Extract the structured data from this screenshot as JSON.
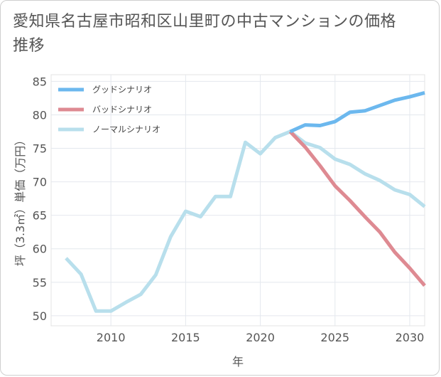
{
  "title": "愛知県名古屋市昭和区山里町の中古マンションの価格推移",
  "chart_data": {
    "type": "line",
    "xlabel": "年",
    "ylabel": "坪（3.3㎡）単価（万円）",
    "xlim": [
      2006,
      2031
    ],
    "ylim": [
      48.5,
      86
    ],
    "x_ticks": [
      2010,
      2015,
      2020,
      2025,
      2030
    ],
    "y_ticks": [
      50,
      55,
      60,
      65,
      70,
      75,
      80,
      85
    ],
    "grid": true,
    "legend_position": "top-left",
    "series": [
      {
        "name": "グッドシナリオ",
        "color": "#6cb8ee",
        "x": [
          2022,
          2023,
          2024,
          2025,
          2026,
          2027,
          2028,
          2029,
          2030,
          2031
        ],
        "values": [
          77.5,
          78.5,
          78.4,
          79.0,
          80.4,
          80.6,
          81.4,
          82.2,
          82.7,
          83.3
        ]
      },
      {
        "name": "バッドシナリオ",
        "color": "#de8a92",
        "x": [
          2022,
          2023,
          2024,
          2025,
          2026,
          2027,
          2028,
          2029,
          2030,
          2031
        ],
        "values": [
          77.5,
          75.2,
          72.4,
          69.4,
          67.2,
          64.8,
          62.5,
          59.5,
          57.1,
          54.5
        ]
      },
      {
        "name": "ノーマルシナリオ",
        "color": "#b8dfec",
        "x": [
          2007,
          2008,
          2009,
          2010,
          2011,
          2012,
          2013,
          2014,
          2015,
          2016,
          2017,
          2018,
          2019,
          2020,
          2021,
          2022,
          2023,
          2024,
          2025,
          2026,
          2027,
          2028,
          2029,
          2030,
          2031
        ],
        "values": [
          58.6,
          56.2,
          50.7,
          50.7,
          52.0,
          53.2,
          56.1,
          61.8,
          65.6,
          64.8,
          67.8,
          67.8,
          75.9,
          74.2,
          76.6,
          77.5,
          75.8,
          75.1,
          73.4,
          72.6,
          71.2,
          70.2,
          68.8,
          68.1,
          66.3
        ]
      }
    ]
  }
}
